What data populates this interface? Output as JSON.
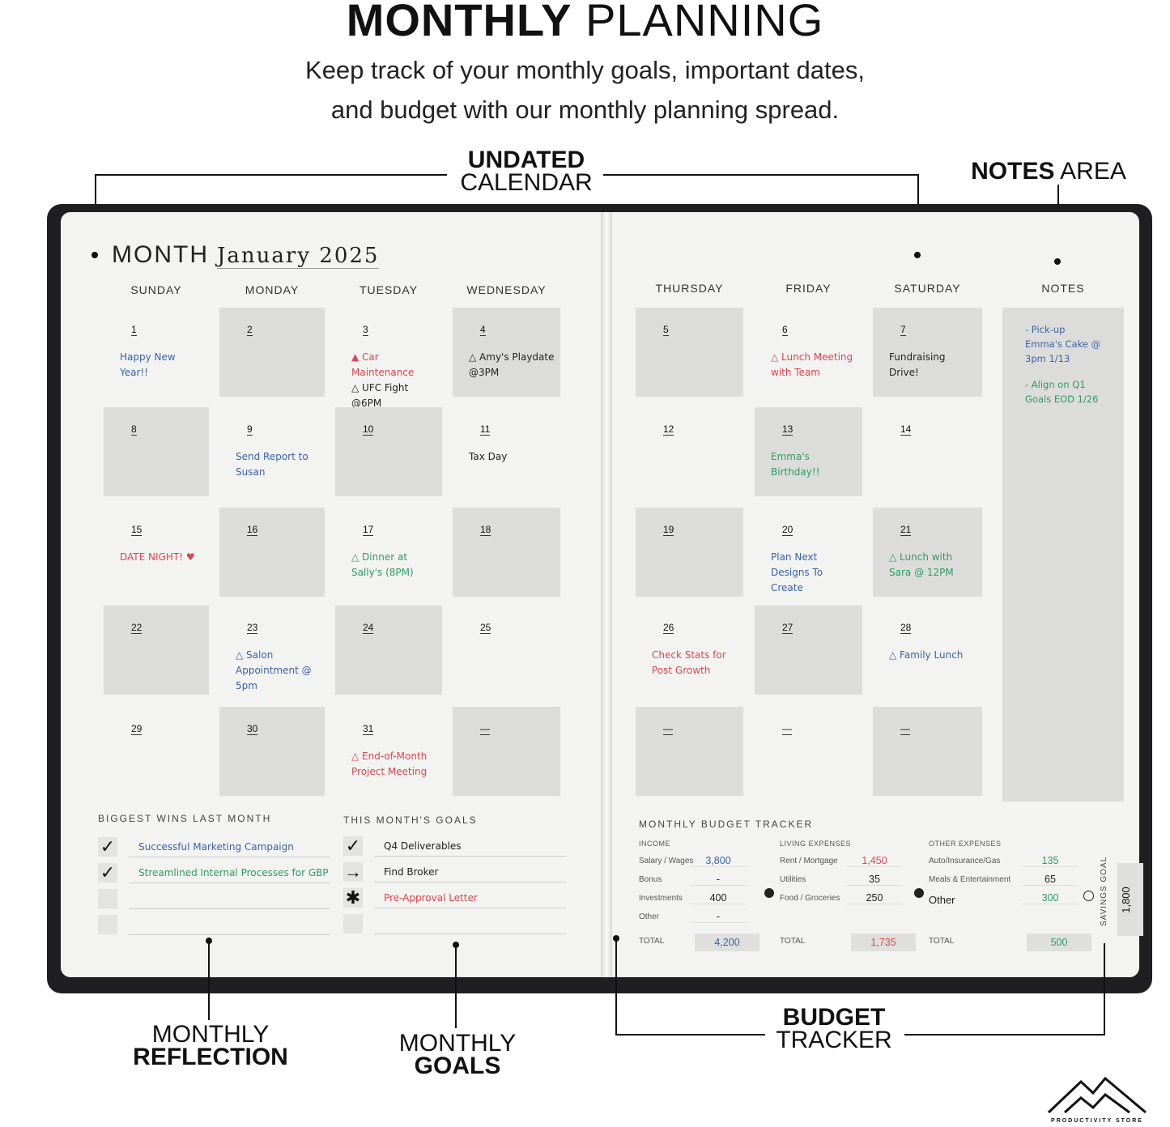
{
  "header": {
    "title_bold": "MONTHLY",
    "title_rest": "PLANNING",
    "subtitle_line1": "Keep track of your monthly goals, important dates,",
    "subtitle_line2": "and budget with our monthly planning spread."
  },
  "callouts": {
    "calendar_bold": "UNDATED",
    "calendar_rest": "CALENDAR",
    "notes_bold": "NOTES",
    "notes_rest": "AREA",
    "reflection_top": "MONTHLY",
    "reflection_bold": "REFLECTION",
    "goals_top": "MONTHLY",
    "goals_bold": "GOALS",
    "budget_bold": "BUDGET",
    "budget_rest": "TRACKER"
  },
  "planner": {
    "month_label": "MONTH",
    "month_value": "January 2025",
    "days": [
      "SUNDAY",
      "MONDAY",
      "TUESDAY",
      "WEDNESDAY",
      "THURSDAY",
      "FRIDAY",
      "SATURDAY"
    ],
    "notes_header": "NOTES",
    "colors": {
      "blue": "#3a62a8",
      "red": "#d9484e",
      "green": "#2f9a64",
      "black": "#222222"
    },
    "calendar": [
      [
        {
          "d": "1",
          "n": [
            {
              "t": "Happy New Year!!",
              "c": "blue"
            }
          ]
        },
        {
          "d": "2",
          "n": []
        },
        {
          "d": "3",
          "n": [
            {
              "t": "▲ Car Maintenance",
              "c": "red"
            },
            {
              "t": "△ UFC Fight @6PM",
              "c": "black"
            }
          ]
        },
        {
          "d": "4",
          "n": [
            {
              "t": "△ Amy's Playdate @3PM",
              "c": "black"
            }
          ]
        },
        {
          "d": "5",
          "n": []
        },
        {
          "d": "6",
          "n": [
            {
              "t": "△ Lunch Meeting with Team",
              "c": "red"
            }
          ]
        },
        {
          "d": "7",
          "n": [
            {
              "t": "Fundraising Drive!",
              "c": "black"
            }
          ]
        }
      ],
      [
        {
          "d": "8",
          "n": []
        },
        {
          "d": "9",
          "n": [
            {
              "t": "Send Report to Susan",
              "c": "blue"
            }
          ]
        },
        {
          "d": "10",
          "n": []
        },
        {
          "d": "11",
          "n": [
            {
              "t": "Tax Day",
              "c": "black"
            }
          ]
        },
        {
          "d": "12",
          "n": []
        },
        {
          "d": "13",
          "n": [
            {
              "t": "Emma's Birthday!!",
              "c": "green"
            }
          ]
        },
        {
          "d": "14",
          "n": []
        }
      ],
      [
        {
          "d": "15",
          "n": [
            {
              "t": "DATE NIGHT! ♥",
              "c": "red"
            }
          ]
        },
        {
          "d": "16",
          "n": []
        },
        {
          "d": "17",
          "n": [
            {
              "t": "△ Dinner at Sally's (8PM)",
              "c": "green"
            }
          ]
        },
        {
          "d": "18",
          "n": []
        },
        {
          "d": "19",
          "n": []
        },
        {
          "d": "20",
          "n": [
            {
              "t": "Plan Next Designs To Create",
              "c": "blue"
            }
          ]
        },
        {
          "d": "21",
          "n": [
            {
              "t": "△ Lunch with Sara @ 12PM",
              "c": "green"
            }
          ]
        }
      ],
      [
        {
          "d": "22",
          "n": []
        },
        {
          "d": "23",
          "n": [
            {
              "t": "△ Salon Appointment @ 5pm",
              "c": "blue"
            }
          ]
        },
        {
          "d": "24",
          "n": []
        },
        {
          "d": "25",
          "n": []
        },
        {
          "d": "26",
          "n": [
            {
              "t": "Check Stats for Post Growth",
              "c": "red"
            }
          ]
        },
        {
          "d": "27",
          "n": []
        },
        {
          "d": "28",
          "n": [
            {
              "t": "△ Family Lunch",
              "c": "blue"
            }
          ]
        }
      ],
      [
        {
          "d": "29",
          "n": []
        },
        {
          "d": "30",
          "n": []
        },
        {
          "d": "31",
          "n": [
            {
              "t": "△ End-of-Month Project Meeting",
              "c": "red"
            }
          ]
        },
        {
          "d": "—",
          "n": []
        },
        {
          "d": "—",
          "n": []
        },
        {
          "d": "—",
          "n": []
        },
        {
          "d": "—",
          "n": []
        }
      ]
    ],
    "notes": [
      {
        "t": "- Pick-up Emma's Cake @ 3pm 1/13",
        "c": "blue"
      },
      {
        "t": "- Align on Q1 Goals EOD 1/26",
        "c": "green"
      }
    ],
    "wins": {
      "title": "BIGGEST WINS LAST MONTH",
      "items": [
        {
          "mark": "✓",
          "t": "Successful Marketing Campaign",
          "c": "blue"
        },
        {
          "mark": "✓",
          "t": "Streamlined Internal Processes for GBP",
          "c": "green"
        },
        {
          "mark": "",
          "t": "",
          "c": "black"
        },
        {
          "mark": "",
          "t": "",
          "c": "black"
        }
      ]
    },
    "goals": {
      "title": "THIS MONTH'S GOALS",
      "items": [
        {
          "mark": "✓",
          "t": "Q4 Deliverables",
          "c": "black"
        },
        {
          "mark": "→",
          "t": "Find Broker",
          "c": "black"
        },
        {
          "mark": "✱",
          "t": "Pre-Approval Letter",
          "c": "red"
        },
        {
          "mark": "",
          "t": "",
          "c": "black"
        }
      ]
    },
    "budget": {
      "title": "MONTHLY BUDGET TRACKER",
      "total_label": "TOTAL",
      "savings_label": "SAVINGS GOAL",
      "savings_value": "1,800",
      "groups": [
        {
          "title": "INCOME",
          "c": "blue",
          "rows": [
            [
              "Salary / Wages",
              "3,800",
              "blue"
            ],
            [
              "Bonus",
              "-",
              "black"
            ],
            [
              "Investments",
              "400",
              "black"
            ],
            [
              "Other",
              "-",
              "black"
            ]
          ],
          "total": "4,200"
        },
        {
          "title": "LIVING EXPENSES",
          "c": "red",
          "rows": [
            [
              "Rent / Mortgage",
              "1,450",
              "red"
            ],
            [
              "Utilities",
              "35",
              "black"
            ],
            [
              "Food / Groceries",
              "250",
              "black"
            ]
          ],
          "total": "1,735"
        },
        {
          "title": "OTHER EXPENSES",
          "c": "green",
          "rows": [
            [
              "Auto/Insurance/Gas",
              "135",
              "green"
            ],
            [
              "Meals & Entertainment",
              "65",
              "black"
            ],
            [
              "Other",
              "300",
              "green"
            ]
          ],
          "total": "500"
        }
      ]
    }
  },
  "logo": {
    "text": "PRODUCTIVITY STORE"
  }
}
